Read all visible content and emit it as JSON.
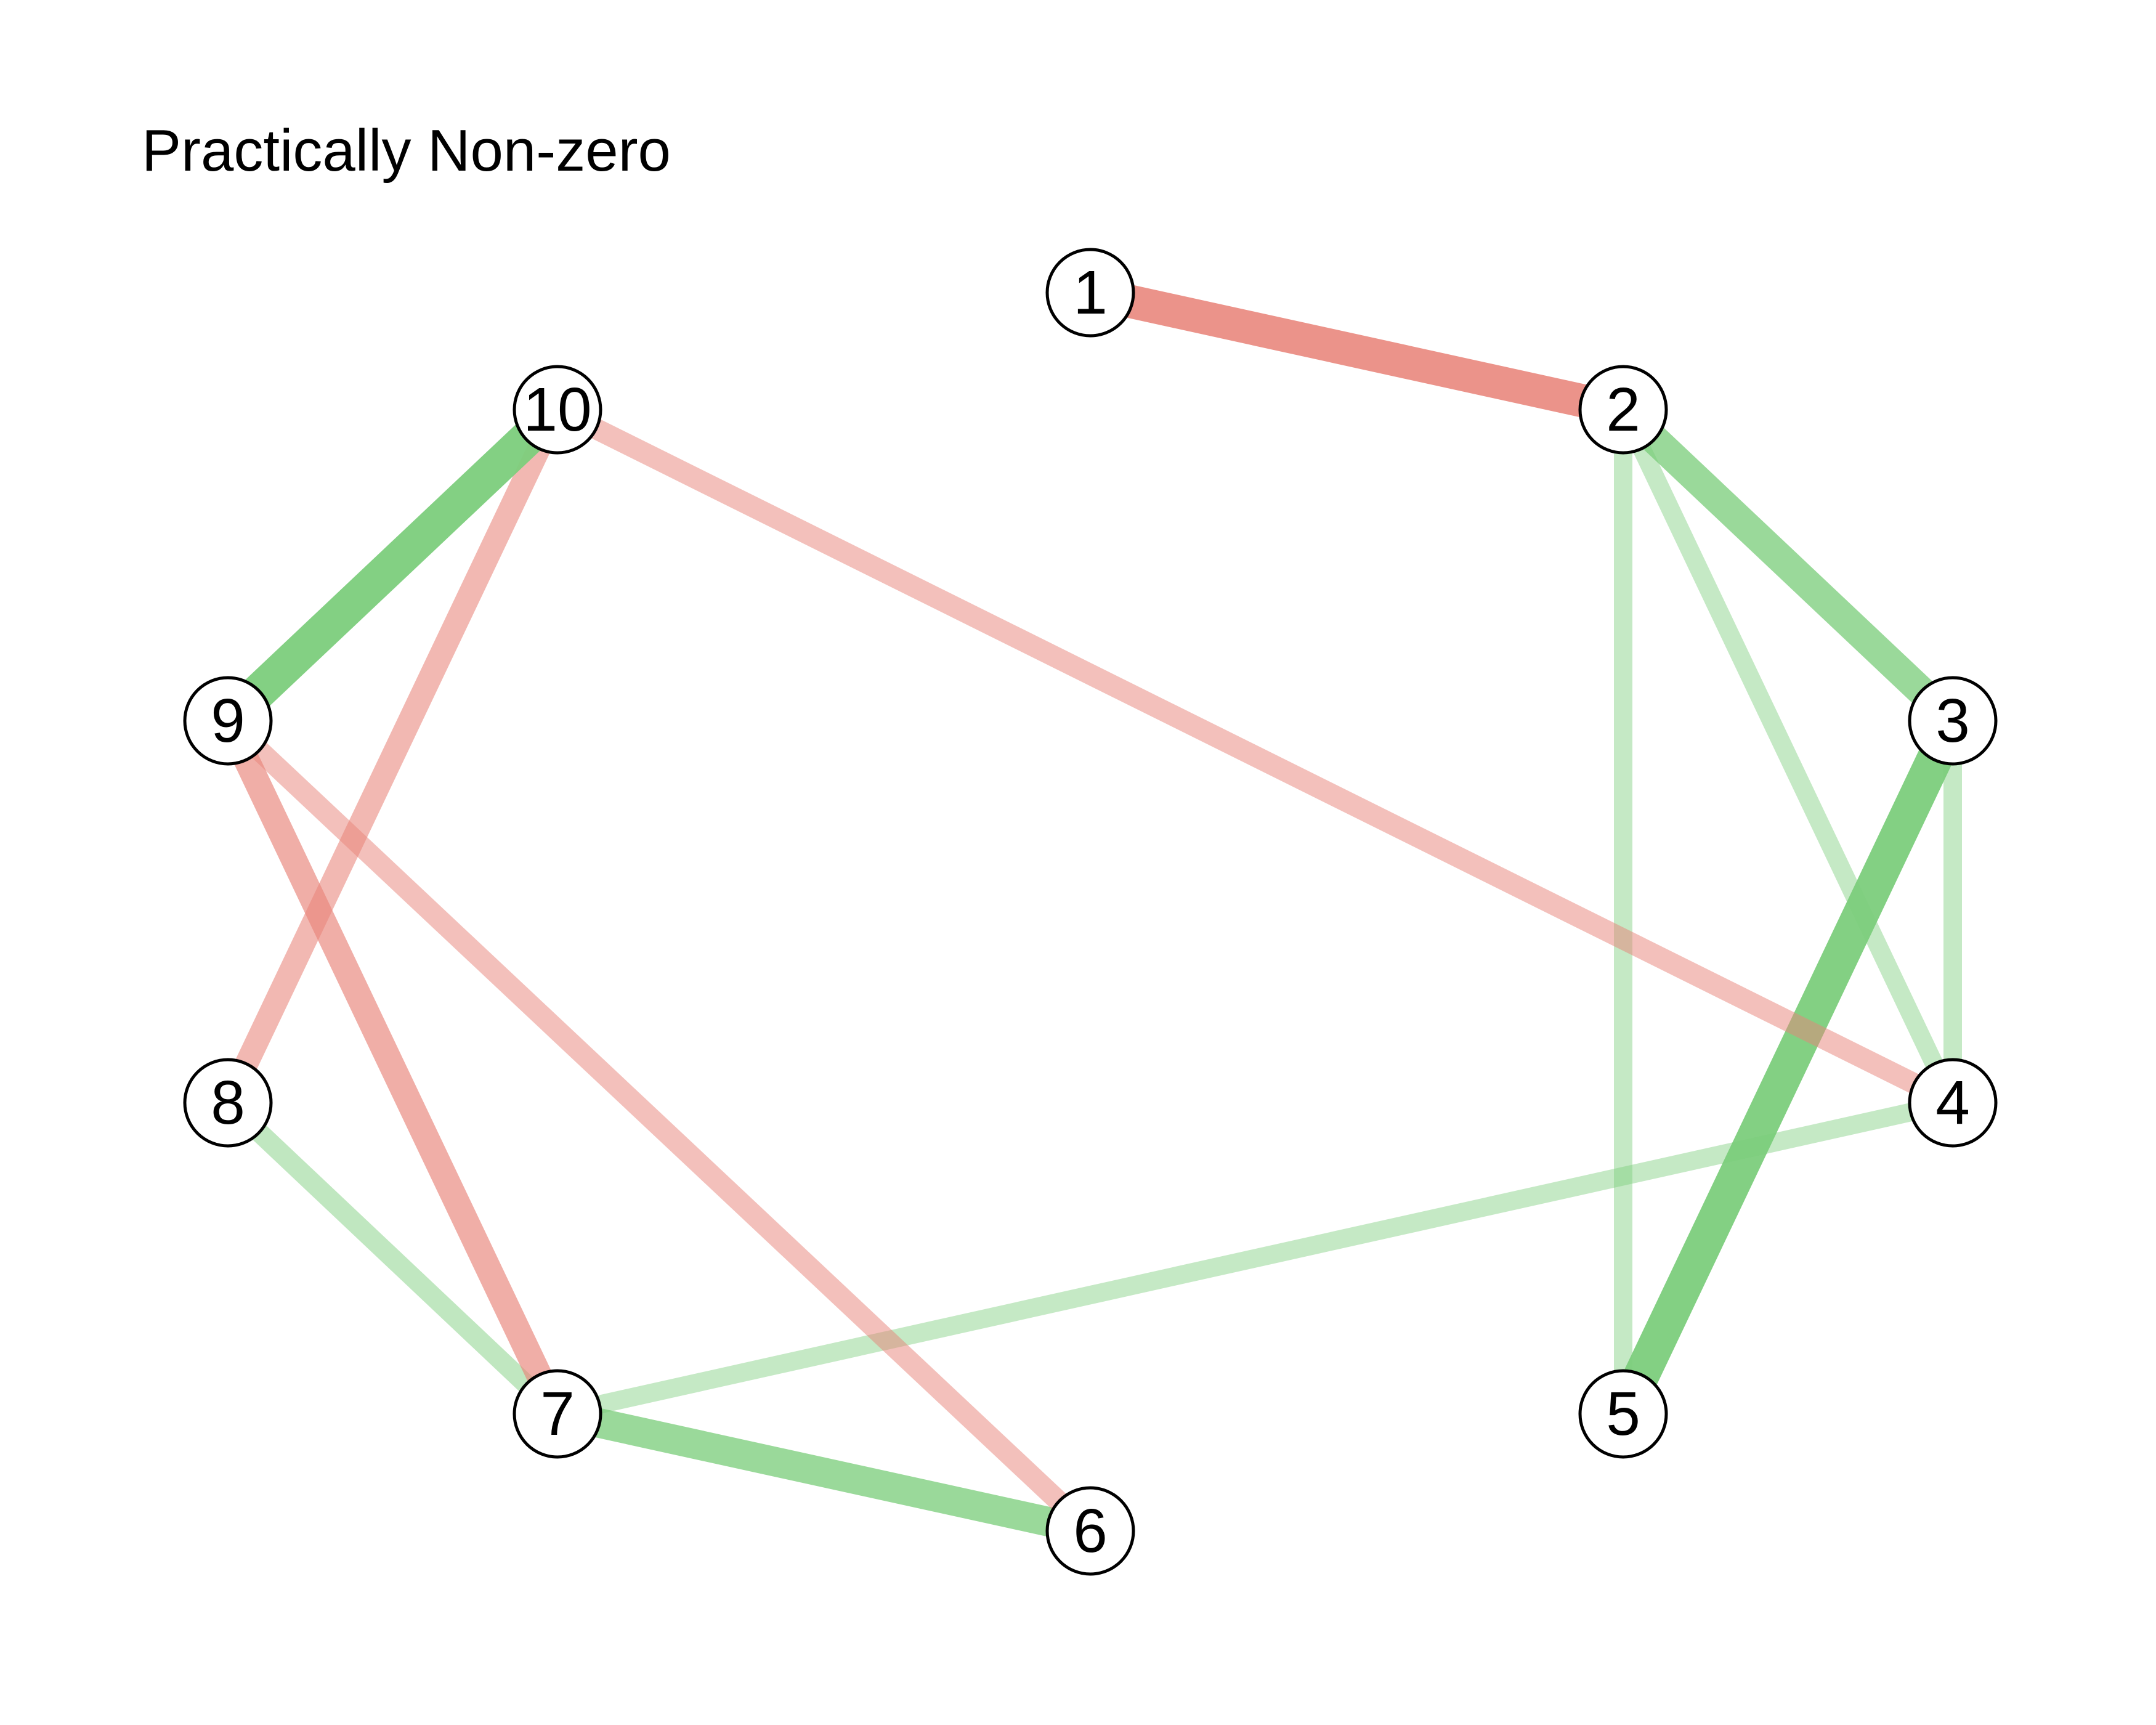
{
  "title": "Practically Non-zero",
  "colors": {
    "positive": "#7ccd7c",
    "negative": "#e8847a",
    "node_fill": "#ffffff",
    "node_stroke": "#000000"
  },
  "nodes": [
    {
      "id": 1,
      "label": "1"
    },
    {
      "id": 2,
      "label": "2"
    },
    {
      "id": 3,
      "label": "3"
    },
    {
      "id": 4,
      "label": "4"
    },
    {
      "id": 5,
      "label": "5"
    },
    {
      "id": 6,
      "label": "6"
    },
    {
      "id": 7,
      "label": "7"
    },
    {
      "id": 8,
      "label": "8"
    },
    {
      "id": 9,
      "label": "9"
    },
    {
      "id": 10,
      "label": "10"
    }
  ],
  "edges": [
    {
      "from": 1,
      "to": 2,
      "sign": "negative",
      "strength": 0.9
    },
    {
      "from": 2,
      "to": 3,
      "sign": "positive",
      "strength": 0.75
    },
    {
      "from": 2,
      "to": 4,
      "sign": "positive",
      "strength": 0.3
    },
    {
      "from": 2,
      "to": 5,
      "sign": "positive",
      "strength": 0.3
    },
    {
      "from": 3,
      "to": 4,
      "sign": "positive",
      "strength": 0.3
    },
    {
      "from": 3,
      "to": 5,
      "sign": "positive",
      "strength": 1.0
    },
    {
      "from": 4,
      "to": 7,
      "sign": "positive",
      "strength": 0.3
    },
    {
      "from": 4,
      "to": 10,
      "sign": "negative",
      "strength": 0.4
    },
    {
      "from": 6,
      "to": 7,
      "sign": "positive",
      "strength": 0.75
    },
    {
      "from": 6,
      "to": 9,
      "sign": "negative",
      "strength": 0.4
    },
    {
      "from": 7,
      "to": 8,
      "sign": "positive",
      "strength": 0.35
    },
    {
      "from": 7,
      "to": 9,
      "sign": "negative",
      "strength": 0.6
    },
    {
      "from": 8,
      "to": 10,
      "sign": "negative",
      "strength": 0.5
    },
    {
      "from": 9,
      "to": 10,
      "sign": "positive",
      "strength": 1.0
    }
  ]
}
